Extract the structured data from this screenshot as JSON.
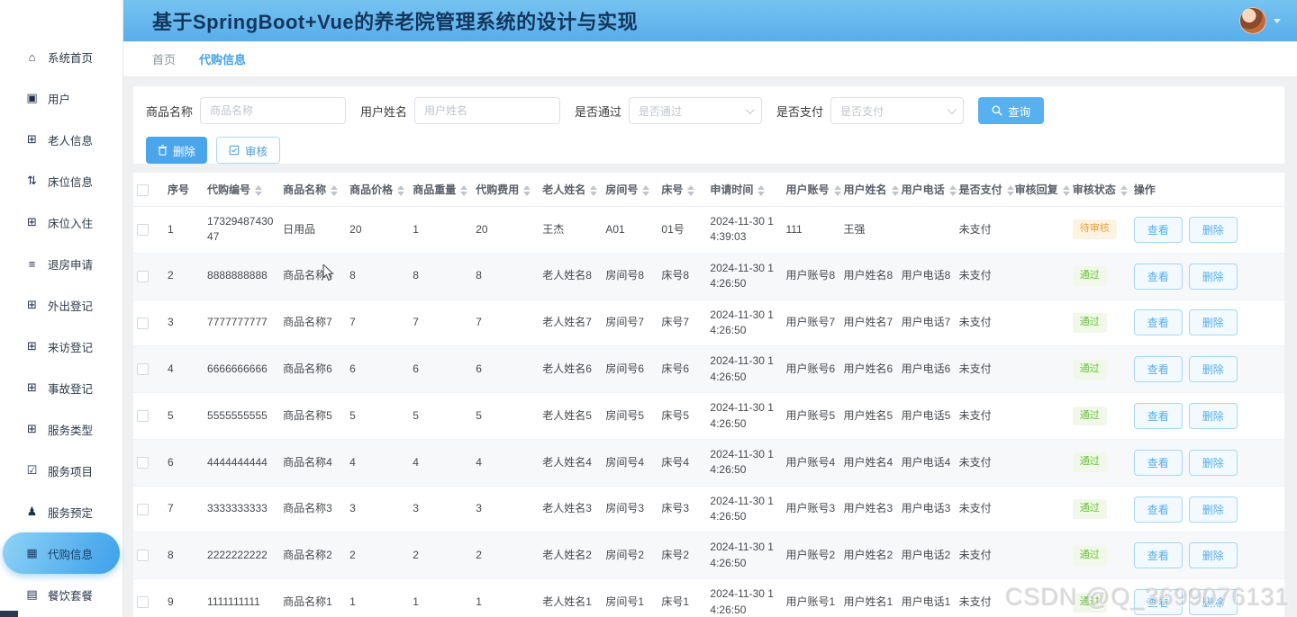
{
  "header": {
    "title": "基于SpringBoot+Vue的养老院管理系统的设计与实现"
  },
  "breadcrumb": {
    "home": "首页",
    "current": "代购信息"
  },
  "sidebar": {
    "items": [
      {
        "label": "系统首页",
        "icon": "home-icon",
        "active": false
      },
      {
        "label": "用户",
        "icon": "monitor-icon",
        "active": false
      },
      {
        "label": "老人信息",
        "icon": "grid-icon",
        "active": false
      },
      {
        "label": "床位信息",
        "icon": "sliders-icon",
        "active": false
      },
      {
        "label": "床位入住",
        "icon": "grid-icon",
        "active": false
      },
      {
        "label": "退房申请",
        "icon": "list-icon",
        "active": false
      },
      {
        "label": "外出登记",
        "icon": "grid-icon",
        "active": false
      },
      {
        "label": "来访登记",
        "icon": "grid-icon",
        "active": false
      },
      {
        "label": "事故登记",
        "icon": "grid-icon",
        "active": false
      },
      {
        "label": "服务类型",
        "icon": "grid-icon",
        "active": false
      },
      {
        "label": "服务项目",
        "icon": "clipboard-icon",
        "active": false
      },
      {
        "label": "服务预定",
        "icon": "person-icon",
        "active": false
      },
      {
        "label": "代购信息",
        "icon": "table-icon",
        "active": true
      },
      {
        "label": "餐饮套餐",
        "icon": "device-icon",
        "active": false
      }
    ]
  },
  "filters": {
    "fields": [
      {
        "label": "商品名称",
        "type": "input",
        "placeholder": "商品名称"
      },
      {
        "label": "用户姓名",
        "type": "input",
        "placeholder": "用户姓名"
      },
      {
        "label": "是否通过",
        "type": "select",
        "placeholder": "是否通过"
      },
      {
        "label": "是否支付",
        "type": "select",
        "placeholder": "是否支付"
      }
    ],
    "search_label": "查询",
    "delete_label": "删除",
    "audit_label": "审核"
  },
  "table": {
    "columns": [
      {
        "label": "序号",
        "sortable": false
      },
      {
        "label": "代购编号",
        "sortable": true
      },
      {
        "label": "商品名称",
        "sortable": true
      },
      {
        "label": "商品价格",
        "sortable": true
      },
      {
        "label": "商品重量",
        "sortable": true
      },
      {
        "label": "代购费用",
        "sortable": true
      },
      {
        "label": "老人姓名",
        "sortable": true
      },
      {
        "label": "房间号",
        "sortable": true
      },
      {
        "label": "床号",
        "sortable": true
      },
      {
        "label": "申请时间",
        "sortable": true
      },
      {
        "label": "用户账号",
        "sortable": true
      },
      {
        "label": "用户姓名",
        "sortable": true
      },
      {
        "label": "用户电话",
        "sortable": true
      },
      {
        "label": "是否支付",
        "sortable": true
      },
      {
        "label": "审核回复",
        "sortable": true
      },
      {
        "label": "审核状态",
        "sortable": true
      },
      {
        "label": "操作",
        "sortable": false
      }
    ],
    "rows": [
      {
        "cells": [
          "1",
          "1732948743047",
          "日用品",
          "20",
          "1",
          "20",
          "王杰",
          "A01",
          "01号",
          "2024-11-30 14:39:03",
          "111",
          "王强",
          "",
          "未支付",
          ""
        ],
        "status": {
          "label": "待审核",
          "type": "pending"
        }
      },
      {
        "cells": [
          "2",
          "8888888888",
          "商品名称8",
          "8",
          "8",
          "8",
          "老人姓名8",
          "房间号8",
          "床号8",
          "2024-11-30 14:26:50",
          "用户账号8",
          "用户姓名8",
          "用户电话8",
          "未支付",
          ""
        ],
        "status": {
          "label": "通过",
          "type": "approved"
        }
      },
      {
        "cells": [
          "3",
          "7777777777",
          "商品名称7",
          "7",
          "7",
          "7",
          "老人姓名7",
          "房间号7",
          "床号7",
          "2024-11-30 14:26:50",
          "用户账号7",
          "用户姓名7",
          "用户电话7",
          "未支付",
          ""
        ],
        "status": {
          "label": "通过",
          "type": "approved"
        }
      },
      {
        "cells": [
          "4",
          "6666666666",
          "商品名称6",
          "6",
          "6",
          "6",
          "老人姓名6",
          "房间号6",
          "床号6",
          "2024-11-30 14:26:50",
          "用户账号6",
          "用户姓名6",
          "用户电话6",
          "未支付",
          ""
        ],
        "status": {
          "label": "通过",
          "type": "approved"
        }
      },
      {
        "cells": [
          "5",
          "5555555555",
          "商品名称5",
          "5",
          "5",
          "5",
          "老人姓名5",
          "房间号5",
          "床号5",
          "2024-11-30 14:26:50",
          "用户账号5",
          "用户姓名5",
          "用户电话5",
          "未支付",
          ""
        ],
        "status": {
          "label": "通过",
          "type": "approved"
        }
      },
      {
        "cells": [
          "6",
          "4444444444",
          "商品名称4",
          "4",
          "4",
          "4",
          "老人姓名4",
          "房间号4",
          "床号4",
          "2024-11-30 14:26:50",
          "用户账号4",
          "用户姓名4",
          "用户电话4",
          "未支付",
          ""
        ],
        "status": {
          "label": "通过",
          "type": "approved"
        }
      },
      {
        "cells": [
          "7",
          "3333333333",
          "商品名称3",
          "3",
          "3",
          "3",
          "老人姓名3",
          "房间号3",
          "床号3",
          "2024-11-30 14:26:50",
          "用户账号3",
          "用户姓名3",
          "用户电话3",
          "未支付",
          ""
        ],
        "status": {
          "label": "通过",
          "type": "approved"
        }
      },
      {
        "cells": [
          "8",
          "2222222222",
          "商品名称2",
          "2",
          "2",
          "2",
          "老人姓名2",
          "房间号2",
          "床号2",
          "2024-11-30 14:26:50",
          "用户账号2",
          "用户姓名2",
          "用户电话2",
          "未支付",
          ""
        ],
        "status": {
          "label": "通过",
          "type": "approved"
        }
      },
      {
        "cells": [
          "9",
          "1111111111",
          "商品名称1",
          "1",
          "1",
          "1",
          "老人姓名1",
          "房间号1",
          "床号1",
          "2024-11-30 14:26:50",
          "用户账号1",
          "用户姓名1",
          "用户电话1",
          "未支付",
          ""
        ],
        "status": {
          "label": "通过",
          "type": "approved"
        }
      }
    ],
    "row_actions": [
      "查看",
      "删除"
    ]
  },
  "watermark": "CSDN @Q_3699076131"
}
